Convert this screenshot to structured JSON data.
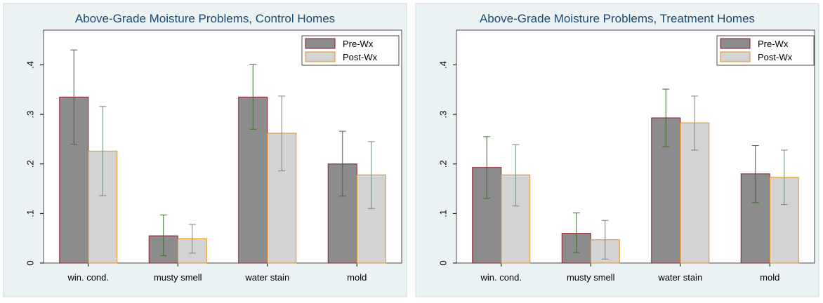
{
  "chart_data": [
    {
      "type": "bar",
      "title": "Above-Grade Moisture Problems, Control Homes",
      "xlabel": "",
      "ylabel": "",
      "ylim": [
        0,
        0.47
      ],
      "yticks": [
        0,
        0.1,
        0.2,
        0.3,
        0.4
      ],
      "ytick_labels": [
        "0",
        ".1",
        ".2",
        ".3",
        ".4"
      ],
      "categories": [
        "win. cond.",
        "musty smell",
        "water stain",
        "mold"
      ],
      "legend_position": "top-right",
      "grid": false,
      "series": [
        {
          "name": "Pre-Wx",
          "values": [
            0.335,
            0.055,
            0.335,
            0.2
          ],
          "ci_low": [
            0.24,
            0.015,
            0.27,
            0.135
          ],
          "ci_high": [
            0.43,
            0.097,
            0.401,
            0.266
          ],
          "fill": "#8c8c8c",
          "stroke": "#8b1a2a",
          "errcolor": "#3c6e2a"
        },
        {
          "name": "Post-Wx",
          "values": [
            0.226,
            0.049,
            0.262,
            0.178
          ],
          "ci_low": [
            0.136,
            0.02,
            0.186,
            0.11
          ],
          "ci_high": [
            0.316,
            0.078,
            0.337,
            0.245
          ],
          "fill": "#d3d3d3",
          "stroke": "#e8901a",
          "errcolor": "#6e8c7a"
        }
      ]
    },
    {
      "type": "bar",
      "title": "Above-Grade Moisture Problems, Treatment Homes",
      "xlabel": "",
      "ylabel": "",
      "ylim": [
        0,
        0.47
      ],
      "yticks": [
        0,
        0.1,
        0.2,
        0.3,
        0.4
      ],
      "ytick_labels": [
        "0",
        ".1",
        ".2",
        ".3",
        ".4"
      ],
      "categories": [
        "win. cond.",
        "musty smell",
        "water stain",
        "mold"
      ],
      "legend_position": "top-right",
      "grid": false,
      "series": [
        {
          "name": "Pre-Wx",
          "values": [
            0.193,
            0.06,
            0.293,
            0.18
          ],
          "ci_low": [
            0.131,
            0.021,
            0.235,
            0.122
          ],
          "ci_high": [
            0.255,
            0.101,
            0.351,
            0.237
          ],
          "fill": "#8c8c8c",
          "stroke": "#8b1a2a",
          "errcolor": "#3c6e2a"
        },
        {
          "name": "Post-Wx",
          "values": [
            0.178,
            0.047,
            0.283,
            0.173
          ],
          "ci_low": [
            0.115,
            0.008,
            0.228,
            0.118
          ],
          "ci_high": [
            0.239,
            0.086,
            0.337,
            0.228
          ],
          "fill": "#d3d3d3",
          "stroke": "#e8901a",
          "errcolor": "#6e8c7a"
        }
      ]
    }
  ],
  "colors": {
    "frame_bg": "#eaf2f3",
    "title": "#1a4a72",
    "axis": "#000000"
  }
}
